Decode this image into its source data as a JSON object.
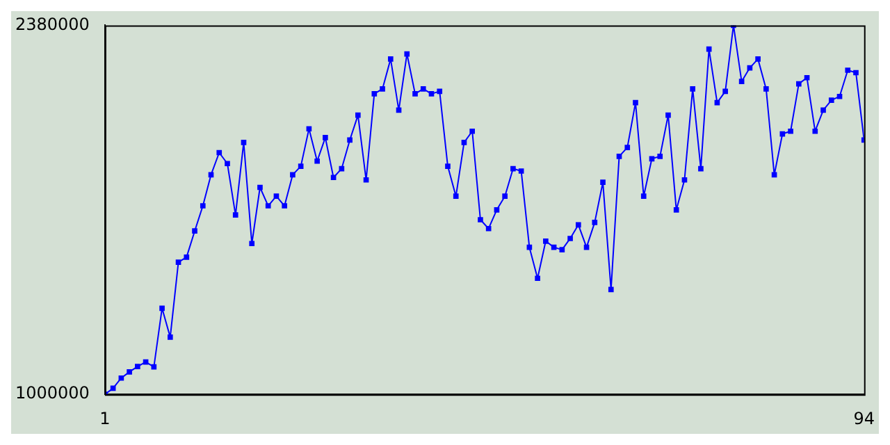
{
  "chart_data": {
    "type": "line",
    "x": [
      1,
      2,
      3,
      4,
      5,
      6,
      7,
      8,
      9,
      10,
      11,
      12,
      13,
      14,
      15,
      16,
      17,
      18,
      19,
      20,
      21,
      22,
      23,
      24,
      25,
      26,
      27,
      28,
      29,
      30,
      31,
      32,
      33,
      34,
      35,
      36,
      37,
      38,
      39,
      40,
      41,
      42,
      43,
      44,
      45,
      46,
      47,
      48,
      49,
      50,
      51,
      52,
      53,
      54,
      55,
      56,
      57,
      58,
      59,
      60,
      61,
      62,
      63,
      64,
      65,
      66,
      67,
      68,
      69,
      70,
      71,
      72,
      73,
      74,
      75,
      76,
      77,
      78,
      79,
      80,
      81,
      82,
      83,
      84,
      85,
      86,
      87,
      88,
      89,
      90,
      91,
      92,
      93,
      94
    ],
    "series": [
      {
        "color": "#0000ff",
        "values": [
          1000000,
          1023000,
          1061000,
          1084000,
          1104000,
          1121000,
          1103000,
          1322000,
          1214000,
          1494000,
          1513000,
          1611000,
          1705000,
          1821000,
          1904000,
          1863000,
          1671000,
          1942000,
          1564000,
          1774000,
          1705000,
          1741000,
          1705000,
          1821000,
          1853000,
          1993000,
          1872000,
          1960000,
          1811000,
          1844000,
          1951000,
          2044000,
          1802000,
          2124000,
          2142000,
          2254000,
          2063000,
          2273000,
          2124000,
          2142000,
          2124000,
          2133000,
          1853000,
          1741000,
          1942000,
          1984000,
          1653000,
          1620000,
          1690000,
          1741000,
          1844000,
          1835000,
          1550000,
          1434000,
          1573000,
          1550000,
          1541000,
          1583000,
          1634000,
          1550000,
          1643000,
          1793000,
          1392000,
          1890000,
          1923000,
          2091000,
          1741000,
          1881000,
          1890000,
          2044000,
          1690000,
          1802000,
          2142000,
          1844000,
          2291000,
          2091000,
          2133000,
          2380000,
          2170000,
          2221000,
          2254000,
          2142000,
          1821000,
          1974000,
          1984000,
          2161000,
          2184000,
          1984000,
          2063000,
          2100000,
          2114000,
          2212000,
          2203000,
          1951000
        ]
      }
    ],
    "xlim": [
      1,
      94
    ],
    "xticks": [
      1,
      94
    ],
    "ylim": [
      1000000,
      2380000
    ],
    "yticks": [
      1000000,
      2380000
    ],
    "grid": false,
    "legend": false,
    "marker": "square",
    "line_style": "solid"
  }
}
